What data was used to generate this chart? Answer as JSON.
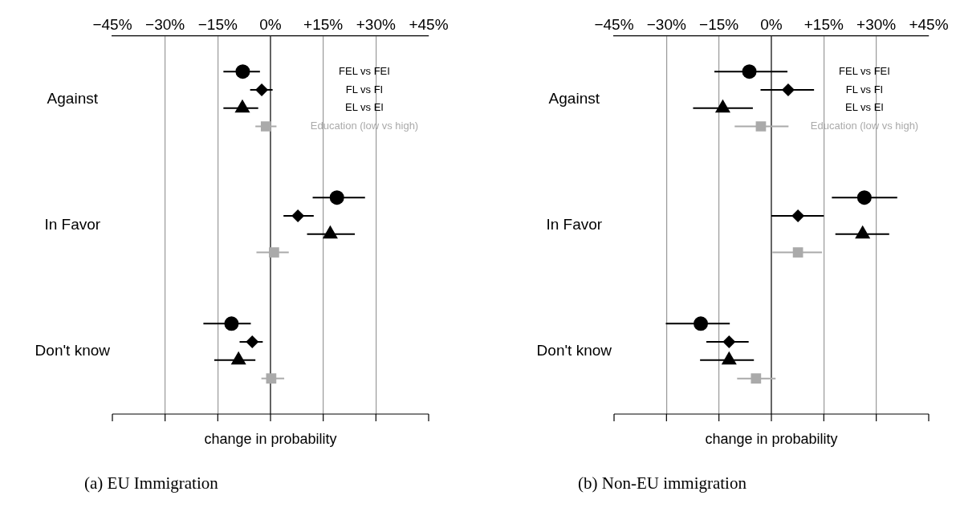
{
  "chart_data": [
    {
      "type": "scatter",
      "orientation": "horizontal",
      "title": "(a) EU Immigration",
      "xlabel": "change in probability",
      "categories": [
        "Against",
        "In Favor",
        "Don't know"
      ],
      "series": [
        {
          "name": "FEL vs FEI",
          "color": "#000000",
          "marker": "circle",
          "values": [
            -7.9,
            18.9,
            -11.1
          ],
          "errors": [
            [
              -13.4,
              -3.0
            ],
            [
              12.0,
              26.9
            ],
            [
              -19.1,
              -5.6
            ]
          ]
        },
        {
          "name": "FL vs FI",
          "color": "#000000",
          "marker": "diamond",
          "values": [
            -2.5,
            7.8,
            -5.2
          ],
          "errors": [
            [
              -5.8,
              0.6
            ],
            [
              3.7,
              12.3
            ],
            [
              -8.8,
              -2.2
            ]
          ]
        },
        {
          "name": "EL vs EI",
          "color": "#000000",
          "marker": "triangle",
          "values": [
            -8.0,
            17.0,
            -9.1
          ],
          "errors": [
            [
              -13.4,
              -3.5
            ],
            [
              10.4,
              24.0
            ],
            [
              -16.0,
              -4.3
            ]
          ]
        },
        {
          "name": "Education (low vs high)",
          "color": "#aaaaaa",
          "marker": "square",
          "values": [
            -1.3,
            1.0,
            0.2
          ],
          "errors": [
            [
              -4.3,
              1.7
            ],
            [
              -4.0,
              5.2
            ],
            [
              -2.6,
              3.9
            ]
          ]
        }
      ],
      "xlim": [
        -45,
        45
      ],
      "xticks": [
        {
          "value": -45,
          "label": "−45%"
        },
        {
          "value": -30,
          "label": "−30%"
        },
        {
          "value": -15,
          "label": "−15%"
        },
        {
          "value": 0,
          "label": "0%"
        },
        {
          "value": 15,
          "label": "+15%"
        },
        {
          "value": 30,
          "label": "+30%"
        },
        {
          "value": 45,
          "label": "+45%"
        }
      ],
      "ref_lines": [
        {
          "axis": "x",
          "value": 0,
          "color": "#444444"
        }
      ],
      "grid": "x",
      "legend": "top right"
    },
    {
      "type": "scatter",
      "orientation": "horizontal",
      "title": "(b) Non-EU immigration",
      "xlabel": "change in probability",
      "categories": [
        "Against",
        "In Favor",
        "Don't know"
      ],
      "series": [
        {
          "name": "FEL vs FEI",
          "color": "#000000",
          "marker": "circle",
          "values": [
            -6.3,
            26.6,
            -20.2
          ],
          "errors": [
            [
              -16.3,
              4.6
            ],
            [
              17.3,
              36.0
            ],
            [
              -30.2,
              -11.9
            ]
          ]
        },
        {
          "name": "FL vs FI",
          "color": "#000000",
          "marker": "diamond",
          "values": [
            4.8,
            7.6,
            -12.1
          ],
          "errors": [
            [
              -3.1,
              12.2
            ],
            [
              0.0,
              15.0
            ],
            [
              -18.6,
              -6.5
            ]
          ]
        },
        {
          "name": "EL vs EI",
          "color": "#000000",
          "marker": "triangle",
          "values": [
            -13.9,
            26.1,
            -12.1
          ],
          "errors": [
            [
              -22.4,
              -5.3
            ],
            [
              18.3,
              33.7
            ],
            [
              -20.4,
              -5.0
            ]
          ]
        },
        {
          "name": "Education (low vs high)",
          "color": "#aaaaaa",
          "marker": "square",
          "values": [
            -3.0,
            7.6,
            -4.4
          ],
          "errors": [
            [
              -10.5,
              4.9
            ],
            [
              0.3,
              14.5
            ],
            [
              -9.8,
              1.2
            ]
          ]
        }
      ],
      "xlim": [
        -45,
        45
      ],
      "xticks": [
        {
          "value": -45,
          "label": "−45%"
        },
        {
          "value": -30,
          "label": "−30%"
        },
        {
          "value": -15,
          "label": "−15%"
        },
        {
          "value": 0,
          "label": "0%"
        },
        {
          "value": 15,
          "label": "+15%"
        },
        {
          "value": 30,
          "label": "+30%"
        },
        {
          "value": 45,
          "label": "+45%"
        }
      ],
      "ref_lines": [
        {
          "axis": "x",
          "value": 0,
          "color": "#444444"
        }
      ],
      "grid": "x",
      "legend": "top right"
    }
  ]
}
